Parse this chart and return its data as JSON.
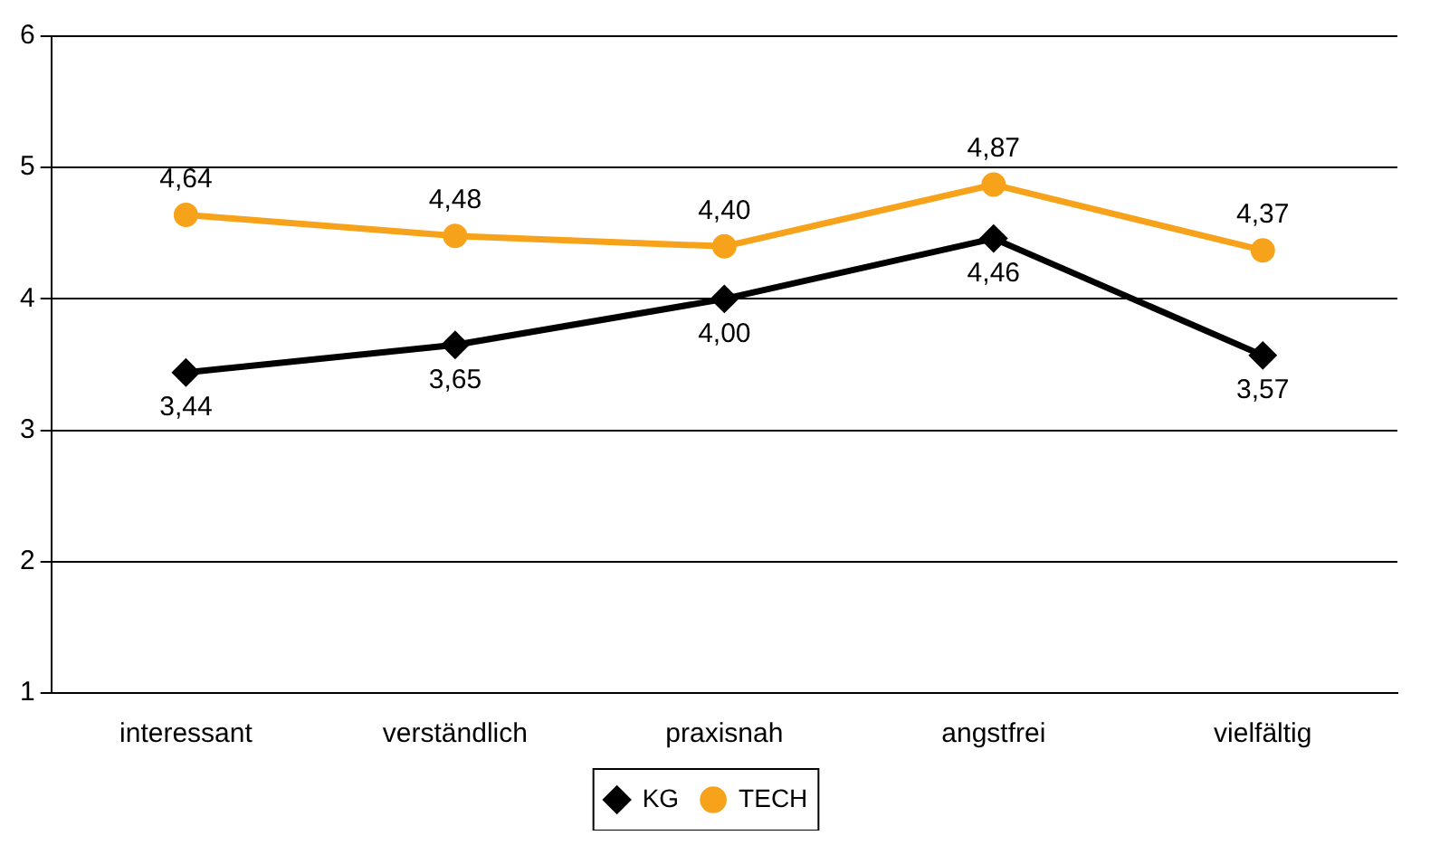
{
  "chart_data": {
    "type": "line",
    "categories": [
      "interessant",
      "verständlich",
      "praxisnah",
      "angstfrei",
      "vielfältig"
    ],
    "series": [
      {
        "name": "KG",
        "color": "#000000",
        "marker": "diamond",
        "values": [
          3.44,
          3.65,
          4.0,
          4.46,
          3.57
        ],
        "value_labels": [
          "3,44",
          "3,65",
          "4,00",
          "4,46",
          "3,57"
        ]
      },
      {
        "name": "TECH",
        "color": "#f7a21b",
        "marker": "circle",
        "values": [
          4.64,
          4.48,
          4.4,
          4.87,
          4.37
        ],
        "value_labels": [
          "4,64",
          "4,48",
          "4,40",
          "4,87",
          "4,37"
        ]
      }
    ],
    "ylim": [
      1,
      6
    ],
    "yticks": [
      1,
      2,
      3,
      4,
      5,
      6
    ],
    "grid": "y",
    "legend": "bottom",
    "line_style": "solid"
  }
}
